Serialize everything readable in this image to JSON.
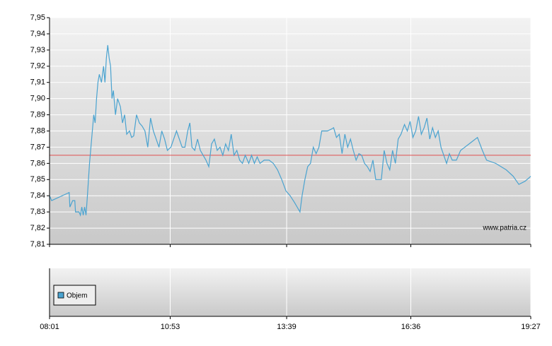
{
  "chart_data": {
    "type": "line",
    "watermark": "www.patria.cz",
    "volume_legend": "Objem",
    "reference_line": 7.865,
    "reference_color": "#e05050",
    "xlim": [
      "08:01",
      "19:27"
    ],
    "xticks": [
      "08:01",
      "10:53",
      "13:39",
      "16:36",
      "19:27"
    ],
    "ylim": [
      7.81,
      7.95
    ],
    "yticks": [
      {
        "value": 7.81,
        "label": "7,81"
      },
      {
        "value": 7.82,
        "label": "7,82"
      },
      {
        "value": 7.83,
        "label": "7,83"
      },
      {
        "value": 7.84,
        "label": "7,84"
      },
      {
        "value": 7.85,
        "label": "7,85"
      },
      {
        "value": 7.86,
        "label": "7,86"
      },
      {
        "value": 7.87,
        "label": "7,87"
      },
      {
        "value": 7.88,
        "label": "7,88"
      },
      {
        "value": 7.89,
        "label": "7,89"
      },
      {
        "value": 7.9,
        "label": "7,90"
      },
      {
        "value": 7.91,
        "label": "7,91"
      },
      {
        "value": 7.92,
        "label": "7,92"
      },
      {
        "value": 7.93,
        "label": "7,93"
      },
      {
        "value": 7.94,
        "label": "7,94"
      },
      {
        "value": 7.95,
        "label": "7,95"
      }
    ],
    "grid": true,
    "color": "#4aa3d0",
    "x": [
      "08:01",
      "08:04",
      "08:29",
      "08:30",
      "08:34",
      "08:37",
      "08:38",
      "08:43",
      "08:45",
      "08:47",
      "08:49",
      "08:51",
      "08:53",
      "08:55",
      "08:58",
      "09:02",
      "09:04",
      "09:06",
      "09:08",
      "09:10",
      "09:12",
      "09:15",
      "09:18",
      "09:20",
      "09:22",
      "09:24",
      "09:26",
      "09:28",
      "09:30",
      "09:32",
      "09:35",
      "09:38",
      "09:42",
      "09:45",
      "09:48",
      "09:51",
      "09:55",
      "09:58",
      "10:01",
      "10:05",
      "10:09",
      "10:13",
      "10:17",
      "10:21",
      "10:25",
      "10:29",
      "10:33",
      "10:37",
      "10:41",
      "10:45",
      "10:49",
      "10:54",
      "10:58",
      "11:02",
      "11:06",
      "11:10",
      "11:14",
      "11:18",
      "11:21",
      "11:24",
      "11:28",
      "11:32",
      "11:36",
      "11:40",
      "11:44",
      "11:48",
      "11:52",
      "11:56",
      "12:00",
      "12:04",
      "12:08",
      "12:12",
      "12:16",
      "12:20",
      "12:24",
      "12:28",
      "12:32",
      "12:36",
      "12:40",
      "12:45",
      "12:49",
      "12:53",
      "12:57",
      "13:01",
      "13:07",
      "13:14",
      "13:20",
      "13:26",
      "13:32",
      "13:38",
      "13:44",
      "13:50",
      "13:54",
      "13:58",
      "14:01",
      "14:05",
      "14:09",
      "14:13",
      "14:17",
      "14:21",
      "14:25",
      "14:29",
      "14:33",
      "14:37",
      "14:42",
      "14:46",
      "14:50",
      "14:54",
      "14:58",
      "15:02",
      "15:06",
      "15:10",
      "15:14",
      "15:18",
      "15:22",
      "15:26",
      "15:30",
      "15:34",
      "15:38",
      "15:42",
      "15:46",
      "15:50",
      "15:54",
      "15:58",
      "16:02",
      "16:06",
      "16:10",
      "16:14",
      "16:18",
      "16:22",
      "16:27",
      "16:31",
      "16:35",
      "16:39",
      "16:43",
      "16:47",
      "16:51",
      "16:55",
      "16:59",
      "17:03",
      "17:07",
      "17:11",
      "17:15",
      "17:19",
      "17:23",
      "17:27",
      "17:31",
      "17:35",
      "17:41",
      "17:47",
      "17:53",
      "17:59",
      "18:05",
      "18:11",
      "18:18",
      "18:24",
      "18:37",
      "18:52",
      "19:02",
      "19:10",
      "19:19",
      "19:27"
    ],
    "values": [
      7.84,
      7.837,
      7.842,
      7.833,
      7.837,
      7.837,
      7.83,
      7.83,
      7.828,
      7.833,
      7.828,
      7.833,
      7.828,
      7.84,
      7.86,
      7.88,
      7.89,
      7.885,
      7.9,
      7.91,
      7.915,
      7.91,
      7.92,
      7.91,
      7.925,
      7.933,
      7.925,
      7.92,
      7.9,
      7.905,
      7.89,
      7.9,
      7.895,
      7.885,
      7.89,
      7.878,
      7.88,
      7.876,
      7.877,
      7.89,
      7.885,
      7.883,
      7.88,
      7.87,
      7.888,
      7.88,
      7.875,
      7.87,
      7.88,
      7.875,
      7.868,
      7.87,
      7.875,
      7.88,
      7.875,
      7.87,
      7.87,
      7.88,
      7.885,
      7.87,
      7.868,
      7.875,
      7.868,
      7.865,
      7.862,
      7.858,
      7.872,
      7.875,
      7.868,
      7.87,
      7.865,
      7.872,
      7.868,
      7.878,
      7.865,
      7.868,
      7.862,
      7.86,
      7.865,
      7.86,
      7.865,
      7.86,
      7.864,
      7.86,
      7.862,
      7.862,
      7.86,
      7.856,
      7.85,
      7.843,
      7.84,
      7.836,
      7.833,
      7.83,
      7.84,
      7.85,
      7.858,
      7.86,
      7.87,
      7.866,
      7.87,
      7.88,
      7.88,
      7.88,
      7.881,
      7.882,
      7.876,
      7.878,
      7.866,
      7.878,
      7.87,
      7.875,
      7.868,
      7.862,
      7.866,
      7.865,
      7.86,
      7.858,
      7.855,
      7.862,
      7.85,
      7.85,
      7.85,
      7.868,
      7.86,
      7.856,
      7.868,
      7.86,
      7.875,
      7.878,
      7.884,
      7.88,
      7.886,
      7.876,
      7.88,
      7.889,
      7.878,
      7.882,
      7.888,
      7.875,
      7.882,
      7.876,
      7.88,
      7.87,
      7.865,
      7.86,
      7.866,
      7.862,
      7.862,
      7.868,
      7.87,
      7.872,
      7.874,
      7.876,
      7.868,
      7.862,
      7.86,
      7.856,
      7.852,
      7.847,
      7.849,
      7.852
    ]
  }
}
